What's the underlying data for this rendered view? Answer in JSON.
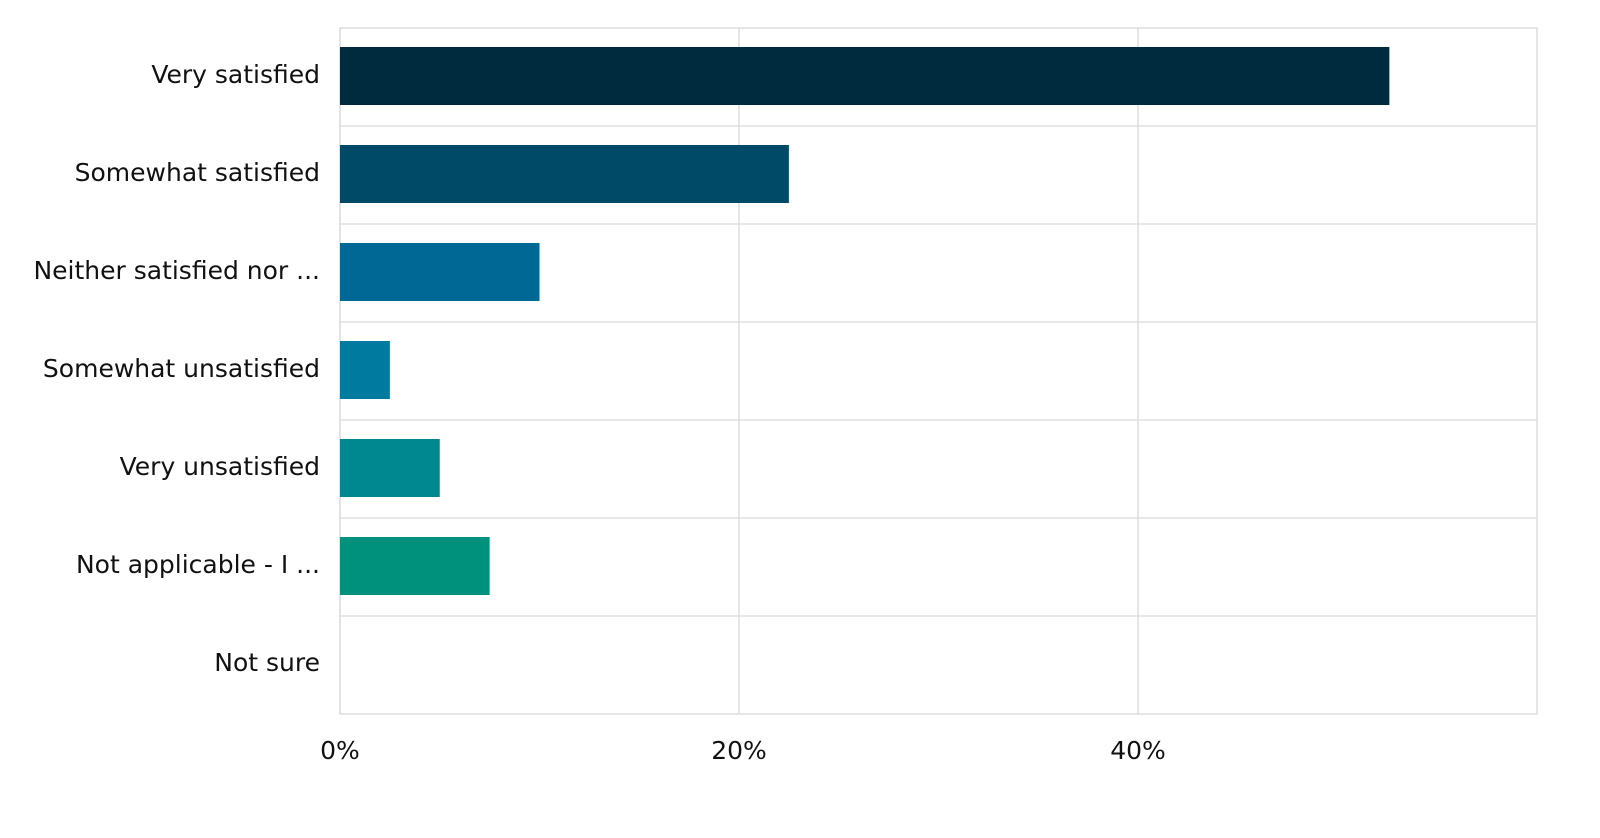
{
  "chart_data": {
    "type": "bar",
    "orientation": "horizontal",
    "categories": [
      "Very satisfied",
      "Somewhat satisfied",
      "Neither satisfied nor ...",
      "Somewhat unsatisfied",
      "Very unsatisfied",
      "Not applicable - I ...",
      "Not sure"
    ],
    "values": [
      52.6,
      22.5,
      10.0,
      2.5,
      5.0,
      7.5,
      0
    ],
    "colors": [
      "#002b3f",
      "#004a68",
      "#006894",
      "#007a9e",
      "#008891",
      "#00917d",
      "#00917d"
    ],
    "xlim": [
      0,
      60
    ],
    "xticks": [
      {
        "value": 0,
        "label": "0%"
      },
      {
        "value": 20,
        "label": "20%"
      },
      {
        "value": 40,
        "label": "40%"
      }
    ],
    "grid": true
  }
}
